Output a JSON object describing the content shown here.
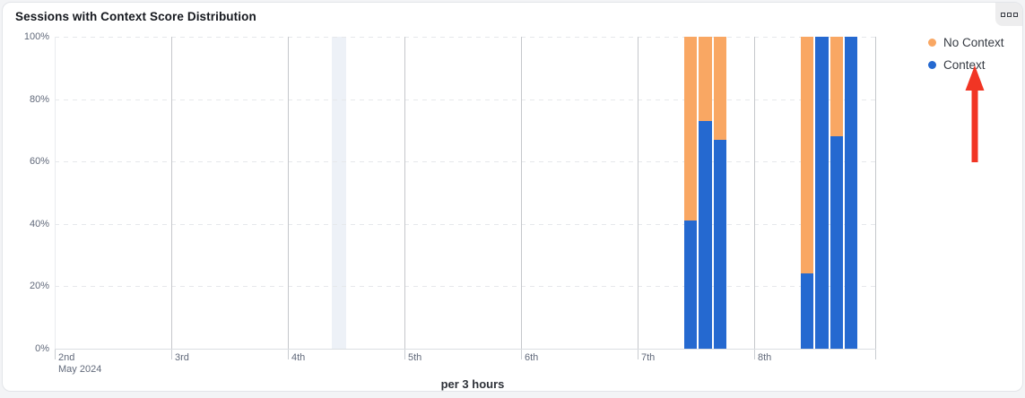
{
  "card": {
    "title": "Sessions with Context Score Distribution"
  },
  "toolbar": {
    "more_button": "more-options-squares"
  },
  "colors": {
    "context": "#2569d0",
    "no_context": "#f9a763",
    "arrow": "#f13524",
    "day_gridline": "#c5c7cb",
    "h_gridline": "#e6e8eb",
    "highlight_band": "#edf1f7"
  },
  "chart_data": {
    "type": "bar",
    "stacked": true,
    "unit": "percent",
    "title": "Sessions with Context Score Distribution",
    "xlabel": "per 3 hours",
    "ylabel": "",
    "ylim": [
      0,
      100
    ],
    "y_ticks": [
      0,
      20,
      40,
      60,
      80,
      100
    ],
    "y_tick_suffix": "%",
    "x_ticks": [
      {
        "label": "2nd",
        "sub": "May 2024"
      },
      {
        "label": "3rd"
      },
      {
        "label": "4th"
      },
      {
        "label": "5th"
      },
      {
        "label": "6th"
      },
      {
        "label": "7th"
      },
      {
        "label": "8th"
      },
      {
        "label": ""
      }
    ],
    "bin_hours": 3,
    "series": [
      {
        "name": "No Context",
        "color": "#f9a763"
      },
      {
        "name": "Context",
        "color": "#2569d0"
      }
    ],
    "bars": [
      {
        "day": "7th",
        "slot": 3,
        "context": 41,
        "no_context": 59
      },
      {
        "day": "7th",
        "slot": 4,
        "context": 73,
        "no_context": 27
      },
      {
        "day": "7th",
        "slot": 5,
        "context": 67,
        "no_context": 33
      },
      {
        "day": "8th",
        "slot": 3,
        "context": 24,
        "no_context": 76
      },
      {
        "day": "8th",
        "slot": 4,
        "context": 100,
        "no_context": 0
      },
      {
        "day": "8th",
        "slot": 5,
        "context": 68,
        "no_context": 32
      },
      {
        "day": "8th",
        "slot": 6,
        "context": 100,
        "no_context": 0
      }
    ],
    "highlight_band": {
      "day": "4th",
      "slot": 3
    },
    "legend": [
      {
        "label": "No Context",
        "color": "#f9a763"
      },
      {
        "label": "Context",
        "color": "#2569d0"
      }
    ],
    "legend_position": "right-top",
    "grid": true
  },
  "annotation": {
    "type": "arrow-up",
    "target": "context-legend-item",
    "color": "#f13524"
  }
}
